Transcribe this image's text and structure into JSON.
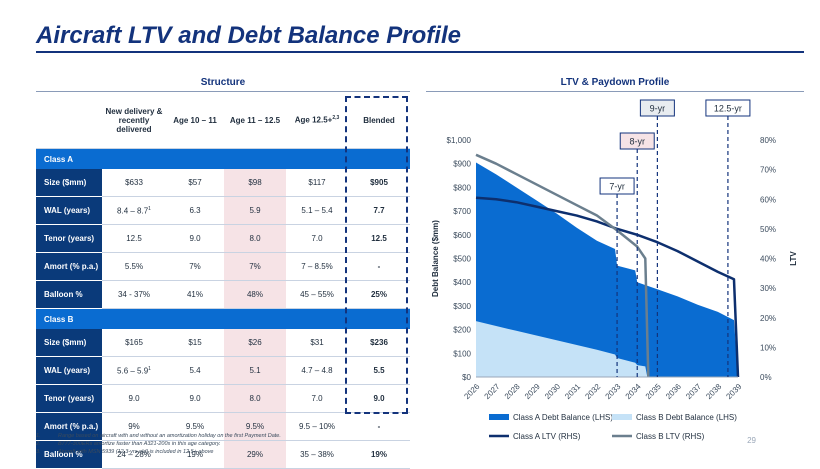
{
  "title": "Aircraft LTV and Debt Balance Profile",
  "structure": {
    "title": "Structure",
    "headers": [
      "",
      "New delivery & recently delivered",
      "Age 10 – 11",
      "Age 11 – 12.5",
      "Age 12.5+",
      "Blended"
    ],
    "header_sup": "2,3",
    "class_a_label": "Class A",
    "class_b_label": "Class B",
    "class_a_rows": [
      {
        "label": "Size ($mm)",
        "values": [
          "$633",
          "$57",
          "$98",
          "$117",
          "$905"
        ]
      },
      {
        "label": "WAL (years)",
        "values": [
          "8.4 – 8.7",
          "6.3",
          "5.9",
          "5.1 – 5.4",
          "7.7"
        ],
        "sup": "1"
      },
      {
        "label": "Tenor (years)",
        "values": [
          "12.5",
          "9.0",
          "8.0",
          "7.0",
          "12.5"
        ]
      },
      {
        "label": "Amort (% p.a.)",
        "values": [
          "5.5%",
          "7%",
          "7%",
          "7 – 8.5%",
          "-"
        ]
      },
      {
        "label": "Balloon %",
        "values": [
          "34 - 37%",
          "41%",
          "48%",
          "45 – 55%",
          "25%"
        ]
      }
    ],
    "class_b_rows": [
      {
        "label": "Size ($mm)",
        "values": [
          "$165",
          "$15",
          "$26",
          "$31",
          "$236"
        ]
      },
      {
        "label": "WAL (years)",
        "values": [
          "5.6 – 5.9",
          "5.4",
          "5.1",
          "4.7 – 4.8",
          "5.5"
        ],
        "sup": "1"
      },
      {
        "label": "Tenor (years)",
        "values": [
          "9.0",
          "9.0",
          "8.0",
          "7.0",
          "9.0"
        ]
      },
      {
        "label": "Amort (% p.a.)",
        "values": [
          "9%",
          "9.5%",
          "9.5%",
          "9.5 – 10%",
          "-"
        ]
      },
      {
        "label": "Balloon %",
        "values": [
          "24 – 28%",
          "19%",
          "29%",
          "35 – 38%",
          "19%"
        ]
      }
    ]
  },
  "footnotes": [
    {
      "n": "1.",
      "text": "Range based on aircraft with and without an amortization holiday on the first Payment Date."
    },
    {
      "n": "2.",
      "text": "B777-300ERs amortize faster than A321-200s in this age category."
    },
    {
      "n": "3.",
      "text": "Aircraft with MSN 5939 (12.3-yrs old) is included in 12.5+ above"
    }
  ],
  "page_number": "29",
  "colors": {
    "navy": "#13337c",
    "class_a_debt": "#0a6cd1",
    "class_b_debt": "#c5e2f7",
    "class_a_ltv": "#0d2f6e",
    "class_b_ltv": "#6b7f8e"
  },
  "chart_data": {
    "type": "area",
    "title": "LTV & Paydown Profile",
    "x": [
      2026,
      2027,
      2028,
      2029,
      2030,
      2031,
      2032,
      2033,
      2034,
      2035,
      2036,
      2037,
      2038,
      2039
    ],
    "x_tick_labels": [
      "2026",
      "2027",
      "2028",
      "2029",
      "2030",
      "2031",
      "2032",
      "2033",
      "2034",
      "2035",
      "2036",
      "2037",
      "2038",
      "2039"
    ],
    "ylabel_left": "Debt Balance ($mm)",
    "ylabel_right": "LTV",
    "ylim_left": [
      0,
      1000
    ],
    "ylim_right": [
      0,
      80
    ],
    "yticks_left": [
      "$0",
      "$100",
      "$200",
      "$300",
      "$400",
      "$500",
      "$600",
      "$700",
      "$800",
      "$900",
      "$1,000"
    ],
    "yticks_right": [
      "0%",
      "10%",
      "20%",
      "30%",
      "40%",
      "50%",
      "60%",
      "70%",
      "80%"
    ],
    "series": [
      {
        "name": "Class A Debt Balance (LHS)",
        "kind": "area",
        "axis": "left",
        "points": [
          [
            2026.0,
            905
          ],
          [
            2027.0,
            855
          ],
          [
            2028.0,
            800
          ],
          [
            2029.0,
            745
          ],
          [
            2030.0,
            690
          ],
          [
            2031.0,
            630
          ],
          [
            2032.0,
            575
          ],
          [
            2032.9,
            540
          ],
          [
            2033.0,
            470
          ],
          [
            2033.9,
            450
          ],
          [
            2034.0,
            400
          ],
          [
            2035.0,
            370
          ],
          [
            2036.0,
            340
          ],
          [
            2037.0,
            305
          ],
          [
            2038.0,
            275
          ],
          [
            2038.8,
            240
          ],
          [
            2039.0,
            0
          ]
        ]
      },
      {
        "name": "Class B Debt Balance (LHS)",
        "kind": "area",
        "axis": "left",
        "points": [
          [
            2026.0,
            236
          ],
          [
            2027.0,
            215
          ],
          [
            2028.0,
            195
          ],
          [
            2029.0,
            175
          ],
          [
            2030.0,
            155
          ],
          [
            2031.0,
            135
          ],
          [
            2032.0,
            115
          ],
          [
            2032.9,
            95
          ],
          [
            2033.0,
            80
          ],
          [
            2033.9,
            60
          ],
          [
            2034.0,
            50
          ],
          [
            2034.4,
            45
          ],
          [
            2034.5,
            0
          ]
        ]
      },
      {
        "name": "Class A LTV (RHS)",
        "kind": "line",
        "axis": "right",
        "points": [
          [
            2026.0,
            60.5
          ],
          [
            2027.0,
            60
          ],
          [
            2028.0,
            59
          ],
          [
            2029.0,
            57.5
          ],
          [
            2030.0,
            56
          ],
          [
            2031.0,
            54.5
          ],
          [
            2032.0,
            52.5
          ],
          [
            2033.0,
            50
          ],
          [
            2034.0,
            48
          ],
          [
            2035.0,
            45.5
          ],
          [
            2036.0,
            42.5
          ],
          [
            2037.0,
            39
          ],
          [
            2038.0,
            35.5
          ],
          [
            2038.8,
            33
          ],
          [
            2039.0,
            0
          ]
        ]
      },
      {
        "name": "Class B LTV (RHS)",
        "kind": "line",
        "axis": "right",
        "points": [
          [
            2026.0,
            75
          ],
          [
            2027.0,
            72
          ],
          [
            2028.0,
            68.5
          ],
          [
            2029.0,
            65
          ],
          [
            2030.0,
            61.5
          ],
          [
            2031.0,
            58
          ],
          [
            2032.0,
            54.5
          ],
          [
            2033.0,
            49.5
          ],
          [
            2034.0,
            44
          ],
          [
            2034.4,
            40
          ],
          [
            2034.55,
            0
          ]
        ]
      }
    ],
    "callouts": [
      {
        "label": "7-yr",
        "x": 2033.0
      },
      {
        "label": "8-yr",
        "x": 2034.0
      },
      {
        "label": "9-yr",
        "x": 2035.0
      },
      {
        "label": "12.5-yr",
        "x": 2038.5
      }
    ],
    "legend_placement": "bottom",
    "grid": false
  }
}
